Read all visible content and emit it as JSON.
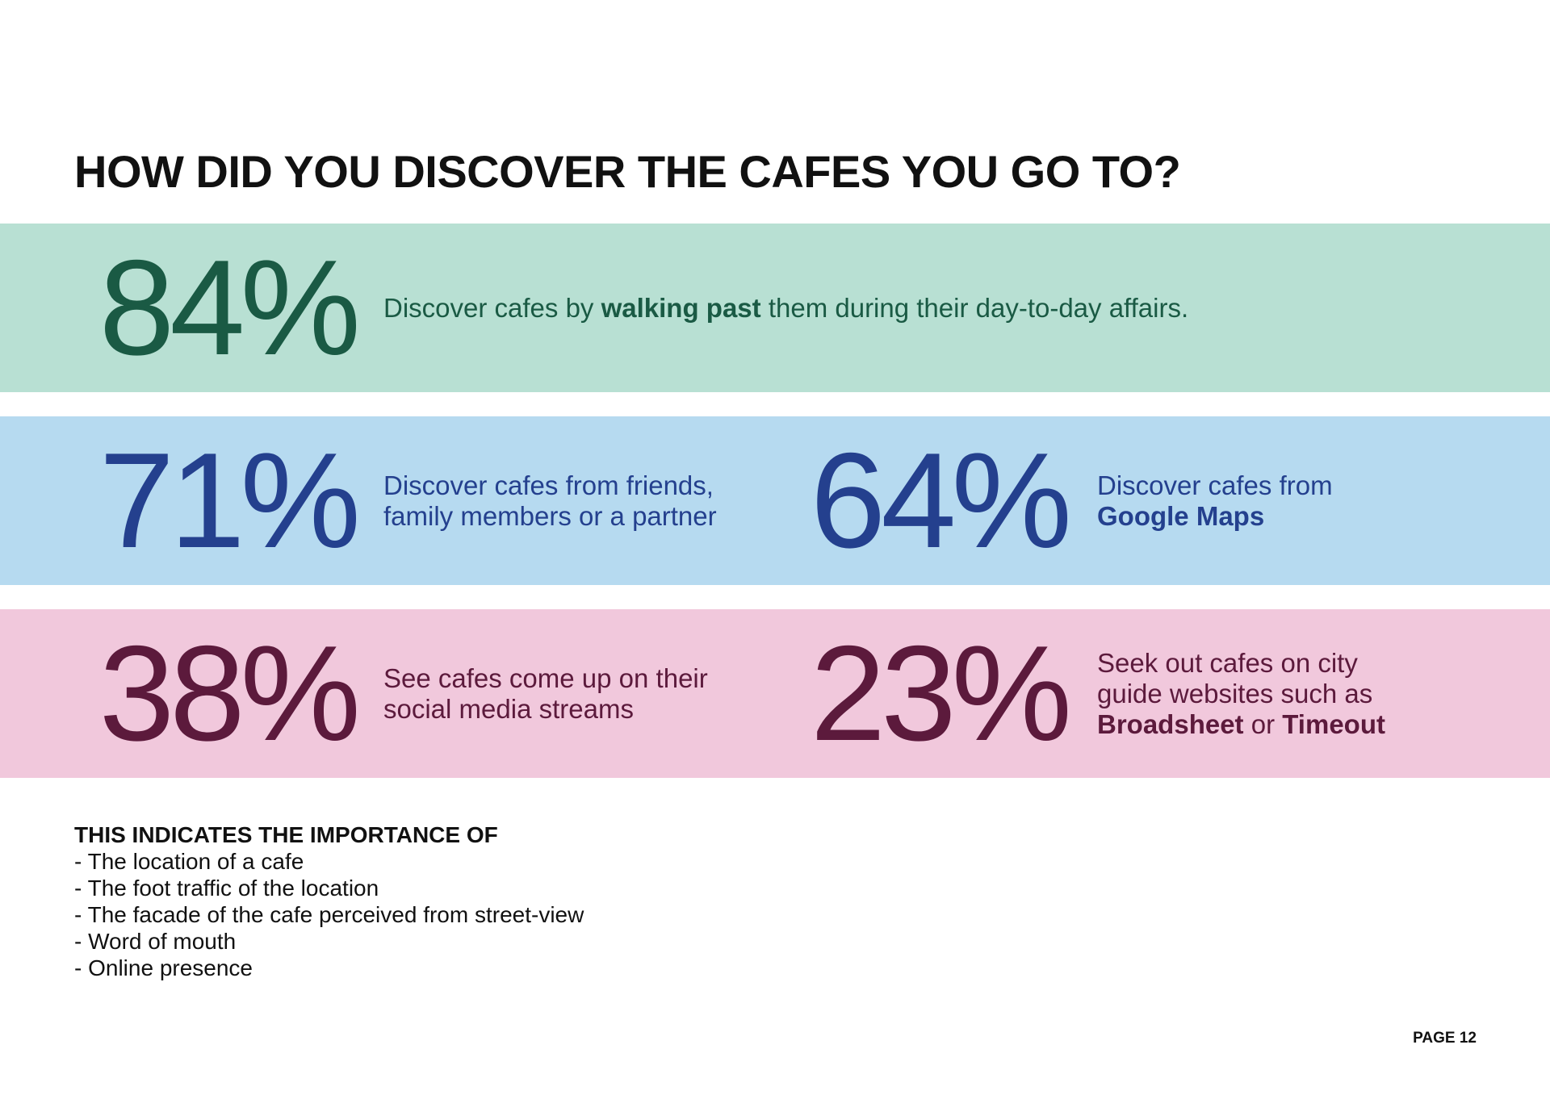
{
  "title": "HOW DID YOU DISCOVER THE CAFES YOU GO TO?",
  "bands": [
    {
      "background": "#b8e0d3",
      "color": "#1a5a44",
      "items": [
        {
          "percent": "84%",
          "lines": [
            [
              {
                "text": "Discover cafes by "
              },
              {
                "text": "walking past",
                "bold": true
              },
              {
                "text": " them during their day-to-day affairs."
              }
            ]
          ]
        }
      ]
    },
    {
      "background": "#b6daf0",
      "color": "#24408e",
      "items": [
        {
          "percent": "71%",
          "lines": [
            [
              {
                "text": "Discover cafes from friends,"
              }
            ],
            [
              {
                "text": "family members or a partner"
              }
            ]
          ]
        },
        {
          "percent": "64%",
          "lines": [
            [
              {
                "text": "Discover cafes from"
              }
            ],
            [
              {
                "text": "Google Maps",
                "bold": true
              }
            ]
          ]
        }
      ]
    },
    {
      "background": "#f1c8dc",
      "color": "#5c1a3c",
      "items": [
        {
          "percent": "38%",
          "lines": [
            [
              {
                "text": "See cafes come up on their"
              }
            ],
            [
              {
                "text": "social media streams"
              }
            ]
          ]
        },
        {
          "percent": "23%",
          "lines": [
            [
              {
                "text": "Seek out cafes on city"
              }
            ],
            [
              {
                "text": "guide websites such as"
              }
            ],
            [
              {
                "text": "Broadsheet",
                "bold": true
              },
              {
                "text": " or "
              },
              {
                "text": "Timeout",
                "bold": true
              }
            ]
          ]
        }
      ]
    }
  ],
  "conclusion": {
    "heading": "THIS INDICATES THE IMPORTANCE OF",
    "items": [
      "- The location of a cafe",
      "- The foot traffic of the location",
      "- The facade of the cafe perceived from street-view",
      "- Word of mouth",
      "- Online presence"
    ]
  },
  "page_number": "PAGE 12"
}
